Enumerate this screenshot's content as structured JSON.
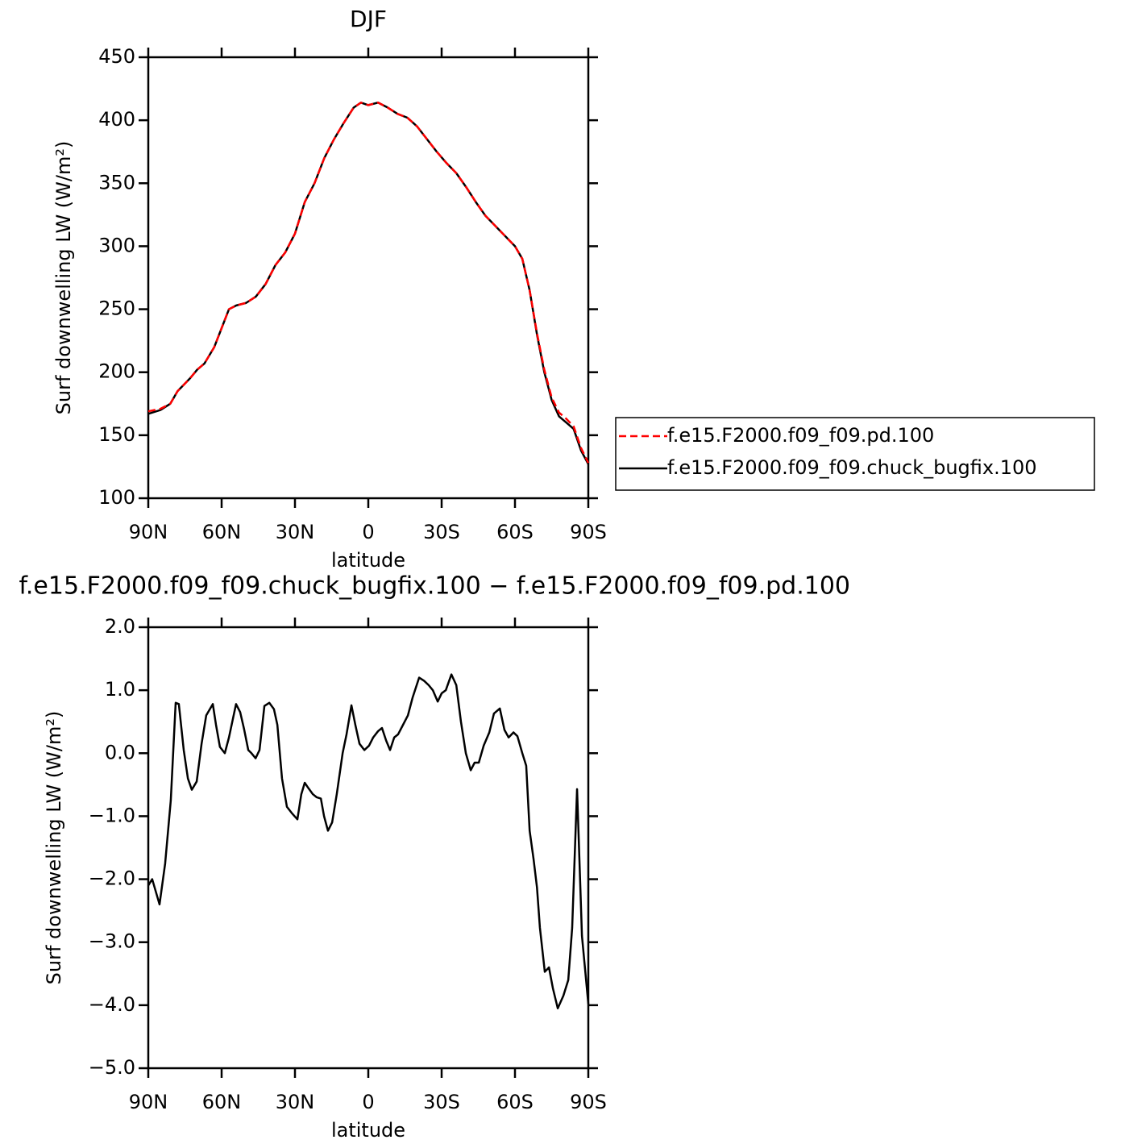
{
  "chart_data": [
    {
      "type": "line",
      "title": "DJF",
      "x_label": "latitude",
      "y_label": "Surf downwelling LW (W/m²)",
      "xlim": [
        90,
        -90
      ],
      "xticks": [
        {
          "value": 90,
          "label": "90N"
        },
        {
          "value": 60,
          "label": "60N"
        },
        {
          "value": 30,
          "label": "30N"
        },
        0,
        {
          "value": -30,
          "label": "30S"
        },
        {
          "value": -60,
          "label": "60S"
        },
        {
          "value": -90,
          "label": "90S"
        }
      ],
      "ylim": [
        100,
        450
      ],
      "yticks": [
        100,
        150,
        200,
        250,
        300,
        350,
        400,
        450
      ],
      "legend": "right",
      "x": [
        90,
        85,
        81,
        78,
        73,
        70,
        67,
        63,
        60,
        57,
        54,
        50,
        46,
        42,
        38,
        34,
        30,
        26,
        22,
        18,
        14,
        10,
        6,
        3,
        0,
        -4,
        -8,
        -12,
        -16,
        -20,
        -24,
        -28,
        -32,
        -36,
        -40,
        -44,
        -48,
        -52,
        -56,
        -60,
        -63,
        -66,
        -69,
        -72,
        -75,
        -78,
        -81,
        -84,
        -87,
        -90
      ],
      "series": [
        {
          "name": "f.e15.F2000.f09_f09.pd.100",
          "color": "#ff0000",
          "line_style": "dashed",
          "values": [
            169,
            171,
            175,
            185,
            195,
            202,
            207,
            220,
            235,
            250,
            253,
            255,
            260,
            270,
            285,
            295,
            310,
            335,
            350,
            370,
            385,
            398,
            410,
            414,
            412,
            414,
            410,
            405,
            402,
            395,
            385,
            375,
            366,
            358,
            347,
            335,
            324,
            316,
            308,
            300,
            290,
            265,
            231,
            202,
            180,
            168,
            163,
            157,
            140,
            128
          ]
        },
        {
          "name": "f.e15.F2000.f09_f09.chuck_bugfix.100",
          "color": "#000000",
          "line_style": "solid",
          "values": [
            167,
            170,
            175,
            185,
            195,
            202,
            207,
            220,
            235,
            250,
            253,
            255,
            260,
            270,
            285,
            295,
            310,
            335,
            350,
            370,
            385,
            398,
            410,
            414,
            412,
            414,
            410,
            405,
            402,
            395,
            385,
            375,
            366,
            358,
            347,
            335,
            324,
            316,
            308,
            300,
            290,
            265,
            230,
            200,
            178,
            165,
            160,
            155,
            138,
            127
          ]
        }
      ]
    },
    {
      "type": "line",
      "title": "f.e15.F2000.f09_f09.chuck_bugfix.100 − f.e15.F2000.f09_f09.pd.100",
      "x_label": "latitude",
      "y_label": "Surf downwelling LW (W/m²)",
      "xlim": [
        90,
        -90
      ],
      "xticks": [
        {
          "value": 90,
          "label": "90N"
        },
        {
          "value": 60,
          "label": "60N"
        },
        {
          "value": 30,
          "label": "30N"
        },
        0,
        {
          "value": -30,
          "label": "30S"
        },
        {
          "value": -60,
          "label": "60S"
        },
        {
          "value": -90,
          "label": "90S"
        }
      ],
      "ylim": [
        -5,
        2
      ],
      "yticks": [
        {
          "value": -5,
          "label": "−5.0"
        },
        {
          "value": -4,
          "label": "−4.0"
        },
        {
          "value": -3,
          "label": "−3.0"
        },
        {
          "value": -2,
          "label": "−2.0"
        },
        {
          "value": -1,
          "label": "−1.0"
        },
        {
          "value": 0,
          "label": "0.0"
        },
        {
          "value": 1,
          "label": "1.0"
        },
        {
          "value": 2,
          "label": "2.0"
        }
      ],
      "x": [
        90,
        88.4,
        85.4,
        83.1,
        80.8,
        78.8,
        77.5,
        75.5,
        73.8,
        72.2,
        70.2,
        68.2,
        66.3,
        63.6,
        62.3,
        60.7,
        58.7,
        57.0,
        54.1,
        52.4,
        50.8,
        49.1,
        47.8,
        46.1,
        44.5,
        42.5,
        40.5,
        38.6,
        37.2,
        35.3,
        33.3,
        31.3,
        29.0,
        27.4,
        26.0,
        24.4,
        22.7,
        21.1,
        19.4,
        18.1,
        16.5,
        14.8,
        12.9,
        10.5,
        8.9,
        6.9,
        5.3,
        3.6,
        1.6,
        -0.3,
        -2.0,
        -4.0,
        -5.6,
        -7.3,
        -8.9,
        -10.6,
        -12.2,
        -14.2,
        -16.2,
        -18.1,
        -20.8,
        -22.8,
        -24.7,
        -26.4,
        -28.4,
        -30.0,
        -31.7,
        -34.0,
        -36.0,
        -37.9,
        -39.9,
        -41.9,
        -43.5,
        -45.2,
        -47.2,
        -49.5,
        -51.4,
        -53.8,
        -55.7,
        -57.4,
        -59.4,
        -61.0,
        -63.0,
        -64.6,
        -66.0,
        -67.6,
        -69.0,
        -70.2,
        -72.2,
        -73.9,
        -75.5,
        -77.5,
        -79.8,
        -81.8,
        -83.4,
        -85.4,
        -87.4,
        -90
      ],
      "color": "#000000",
      "values": [
        -2.1,
        -2.0,
        -2.4,
        -1.75,
        -0.75,
        0.8,
        0.78,
        0.05,
        -0.4,
        -0.58,
        -0.45,
        0.15,
        0.6,
        0.78,
        0.45,
        0.1,
        0.0,
        0.25,
        0.78,
        0.65,
        0.38,
        0.05,
        0.0,
        -0.08,
        0.05,
        0.75,
        0.8,
        0.7,
        0.45,
        -0.4,
        -0.85,
        -0.95,
        -1.05,
        -0.65,
        -0.47,
        -0.56,
        -0.65,
        -0.7,
        -0.72,
        -1.0,
        -1.23,
        -1.1,
        -0.65,
        0.0,
        0.3,
        0.76,
        0.45,
        0.15,
        0.05,
        0.12,
        0.25,
        0.35,
        0.4,
        0.2,
        0.05,
        0.25,
        0.3,
        0.45,
        0.6,
        0.88,
        1.2,
        1.15,
        1.08,
        1.0,
        0.82,
        0.95,
        1.0,
        1.25,
        1.08,
        0.5,
        0.0,
        -0.27,
        -0.15,
        -0.15,
        0.12,
        0.33,
        0.63,
        0.71,
        0.37,
        0.25,
        0.33,
        0.27,
        0.0,
        -0.2,
        -1.23,
        -1.68,
        -2.13,
        -2.77,
        -3.47,
        -3.4,
        -3.73,
        -4.05,
        -3.85,
        -3.6,
        -2.77,
        -0.57,
        -2.9,
        -3.98
      ]
    }
  ]
}
